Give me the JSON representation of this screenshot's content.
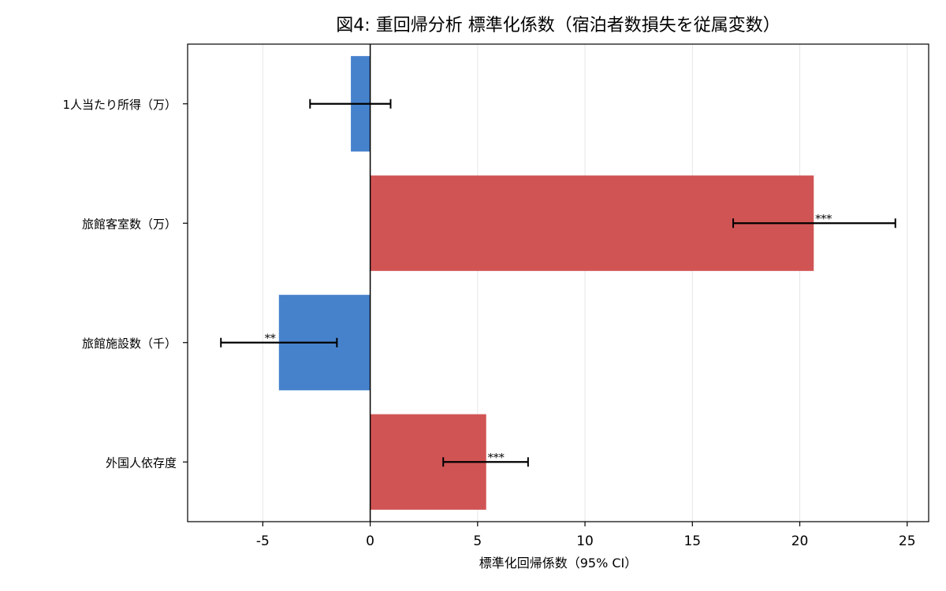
{
  "chart_data": {
    "type": "bar",
    "orientation": "horizontal",
    "title": "図4: 重回帰分析 標準化係数（宿泊者数損失を従属変数）",
    "xlabel": "標準化回帰係数（95% CI）",
    "ylabel": "",
    "xlim": [
      -8.5,
      26
    ],
    "xticks": [
      -5,
      0,
      5,
      10,
      15,
      20,
      25
    ],
    "xtick_labels": [
      "-5",
      "0",
      "5",
      "10",
      "15",
      "20",
      "25"
    ],
    "grid": "x-major",
    "categories": [
      "1人当たり所得（万）",
      "旅館客室数（万）",
      "旅館施設数（千）",
      "外国人依存度"
    ],
    "values": [
      -0.9,
      20.65,
      -4.25,
      5.4
    ],
    "ci_low": [
      -2.8,
      16.9,
      -6.95,
      3.4
    ],
    "ci_high": [
      0.95,
      24.45,
      -1.55,
      7.35
    ],
    "significance": [
      "",
      "***",
      "**",
      "***"
    ],
    "colors": {
      "positive": "#d15454",
      "negative": "#4682cc",
      "zero_line": "#000000",
      "errorbar": "#000000",
      "grid": "#e6e6e6"
    }
  }
}
